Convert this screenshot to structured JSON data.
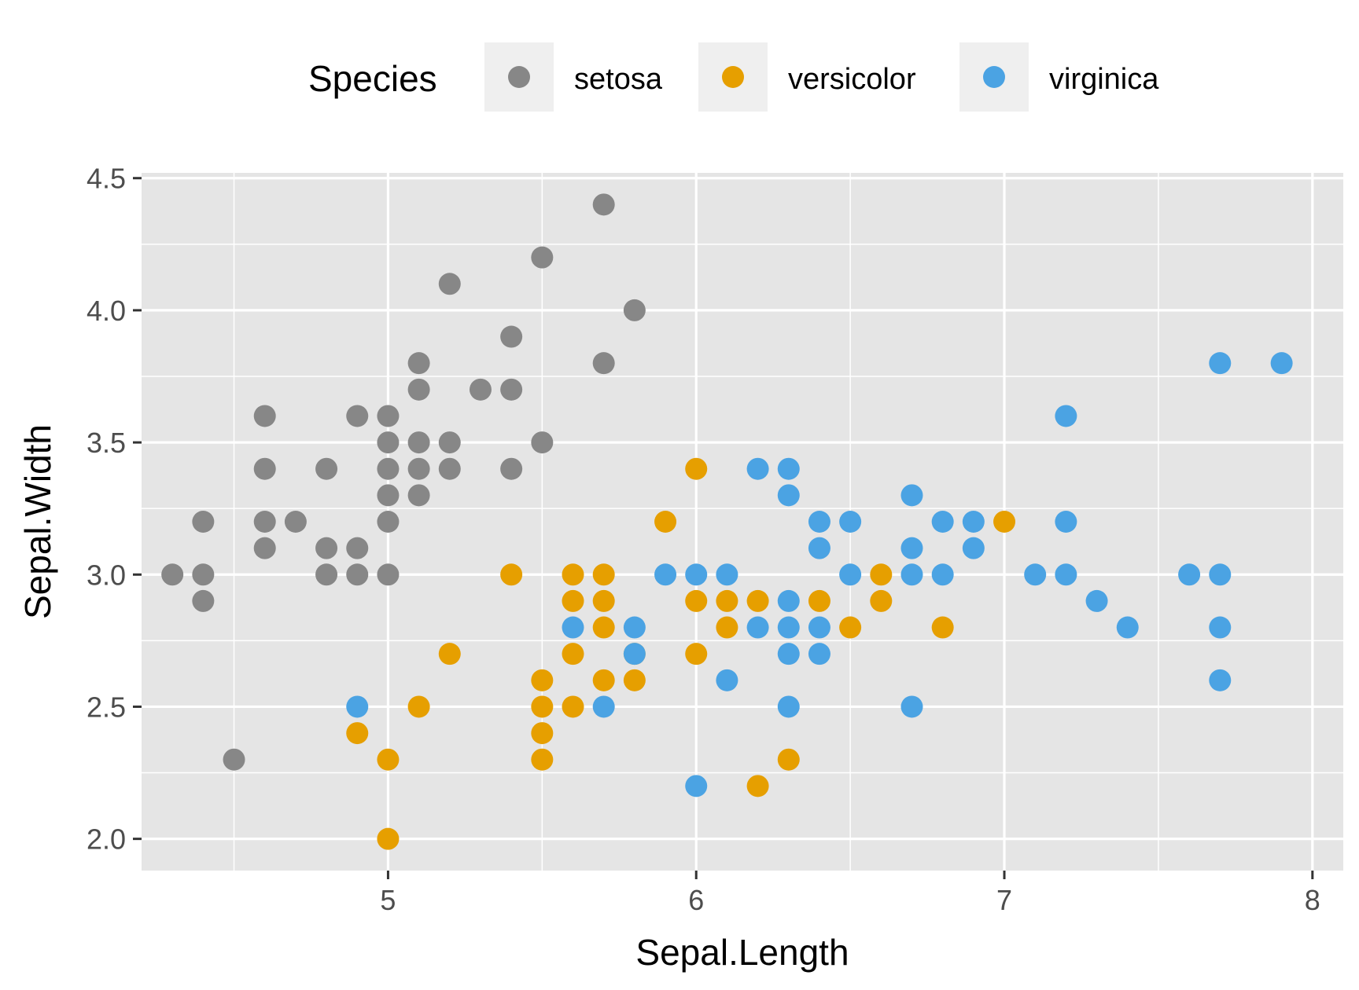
{
  "chart_data": {
    "type": "scatter",
    "xlabel": "Sepal.Length",
    "ylabel": "Sepal.Width",
    "xlim": [
      4.2,
      8.1
    ],
    "ylim": [
      1.88,
      4.52
    ],
    "x_ticks": [
      5,
      6,
      7,
      8
    ],
    "y_ticks": [
      2.0,
      2.5,
      3.0,
      3.5,
      4.0,
      4.5
    ],
    "x_tick_labels": [
      "5",
      "6",
      "7",
      "8"
    ],
    "y_tick_labels": [
      "2.0",
      "2.5",
      "3.0",
      "3.5",
      "4.0",
      "4.5"
    ],
    "grid": true,
    "legend": {
      "title": "Species",
      "position": "top"
    },
    "series": [
      {
        "name": "setosa",
        "color": "#878787",
        "points": [
          [
            4.3,
            3.0
          ],
          [
            4.4,
            3.2
          ],
          [
            4.4,
            3.0
          ],
          [
            4.4,
            2.9
          ],
          [
            4.5,
            2.3
          ],
          [
            4.6,
            3.6
          ],
          [
            4.6,
            3.4
          ],
          [
            4.6,
            3.2
          ],
          [
            4.6,
            3.1
          ],
          [
            4.7,
            3.2
          ],
          [
            4.8,
            3.4
          ],
          [
            4.8,
            3.1
          ],
          [
            4.8,
            3.0
          ],
          [
            4.9,
            3.6
          ],
          [
            4.9,
            3.1
          ],
          [
            4.9,
            3.0
          ],
          [
            5.0,
            3.6
          ],
          [
            5.0,
            3.5
          ],
          [
            5.0,
            3.4
          ],
          [
            5.0,
            3.3
          ],
          [
            5.0,
            3.2
          ],
          [
            5.0,
            3.0
          ],
          [
            5.1,
            3.8
          ],
          [
            5.1,
            3.7
          ],
          [
            5.1,
            3.5
          ],
          [
            5.1,
            3.4
          ],
          [
            5.1,
            3.3
          ],
          [
            5.2,
            4.1
          ],
          [
            5.2,
            3.5
          ],
          [
            5.2,
            3.4
          ],
          [
            5.3,
            3.7
          ],
          [
            5.4,
            3.9
          ],
          [
            5.4,
            3.7
          ],
          [
            5.4,
            3.4
          ],
          [
            5.5,
            4.2
          ],
          [
            5.5,
            3.5
          ],
          [
            5.7,
            4.4
          ],
          [
            5.7,
            3.8
          ],
          [
            5.8,
            4.0
          ]
        ]
      },
      {
        "name": "versicolor",
        "color": "#E69F00",
        "points": [
          [
            4.9,
            2.4
          ],
          [
            5.0,
            2.3
          ],
          [
            5.0,
            2.0
          ],
          [
            5.1,
            2.5
          ],
          [
            5.2,
            2.7
          ],
          [
            5.4,
            3.0
          ],
          [
            5.5,
            2.6
          ],
          [
            5.5,
            2.5
          ],
          [
            5.5,
            2.4
          ],
          [
            5.5,
            2.3
          ],
          [
            5.6,
            3.0
          ],
          [
            5.6,
            2.9
          ],
          [
            5.6,
            2.7
          ],
          [
            5.6,
            2.5
          ],
          [
            5.7,
            3.0
          ],
          [
            5.7,
            2.9
          ],
          [
            5.7,
            2.8
          ],
          [
            5.7,
            2.6
          ],
          [
            5.8,
            2.7
          ],
          [
            5.8,
            2.6
          ],
          [
            5.9,
            3.2
          ],
          [
            6.0,
            3.4
          ],
          [
            6.0,
            2.9
          ],
          [
            6.0,
            2.7
          ],
          [
            6.1,
            2.9
          ],
          [
            6.1,
            2.8
          ],
          [
            6.2,
            2.9
          ],
          [
            6.2,
            2.2
          ],
          [
            6.3,
            2.3
          ],
          [
            6.4,
            2.9
          ],
          [
            6.5,
            2.8
          ],
          [
            6.6,
            3.0
          ],
          [
            6.6,
            2.9
          ],
          [
            6.8,
            2.8
          ],
          [
            7.0,
            3.2
          ]
        ]
      },
      {
        "name": "virginica",
        "color": "#4BA3E3",
        "points": [
          [
            4.9,
            2.5
          ],
          [
            5.6,
            2.8
          ],
          [
            5.7,
            2.5
          ],
          [
            5.8,
            2.8
          ],
          [
            5.8,
            2.7
          ],
          [
            5.9,
            3.0
          ],
          [
            6.0,
            3.0
          ],
          [
            6.0,
            2.2
          ],
          [
            6.1,
            3.0
          ],
          [
            6.1,
            2.6
          ],
          [
            6.2,
            3.4
          ],
          [
            6.2,
            2.8
          ],
          [
            6.3,
            3.4
          ],
          [
            6.3,
            3.3
          ],
          [
            6.3,
            2.9
          ],
          [
            6.3,
            2.8
          ],
          [
            6.3,
            2.7
          ],
          [
            6.3,
            2.5
          ],
          [
            6.4,
            3.2
          ],
          [
            6.4,
            3.1
          ],
          [
            6.4,
            2.8
          ],
          [
            6.4,
            2.7
          ],
          [
            6.5,
            3.2
          ],
          [
            6.5,
            3.0
          ],
          [
            6.7,
            3.3
          ],
          [
            6.7,
            3.1
          ],
          [
            6.7,
            3.0
          ],
          [
            6.7,
            2.5
          ],
          [
            6.8,
            3.2
          ],
          [
            6.8,
            3.0
          ],
          [
            6.9,
            3.2
          ],
          [
            6.9,
            3.1
          ],
          [
            7.1,
            3.0
          ],
          [
            7.2,
            3.6
          ],
          [
            7.2,
            3.2
          ],
          [
            7.2,
            3.0
          ],
          [
            7.3,
            2.9
          ],
          [
            7.4,
            2.8
          ],
          [
            7.6,
            3.0
          ],
          [
            7.7,
            3.8
          ],
          [
            7.7,
            3.0
          ],
          [
            7.7,
            2.8
          ],
          [
            7.7,
            2.6
          ],
          [
            7.9,
            3.8
          ]
        ]
      }
    ]
  }
}
